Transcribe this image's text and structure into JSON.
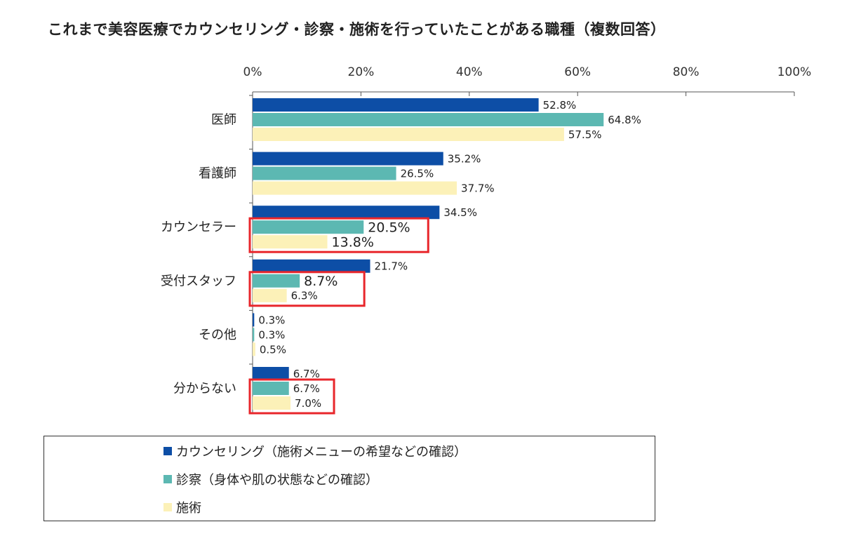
{
  "chart_data": {
    "type": "bar",
    "orientation": "horizontal",
    "title": "これまで美容医療でカウンセリング・診察・施術を行っていたことがある職種（複数回答）",
    "categories": [
      "医師",
      "看護師",
      "カウンセラー",
      "受付スタッフ",
      "その他",
      "分からない"
    ],
    "series": [
      {
        "name": "カウンセリング（施術メニューの希望などの確認）",
        "color": "#0d4ea6",
        "values": [
          52.8,
          35.2,
          34.5,
          21.7,
          0.3,
          6.7
        ],
        "labels": [
          "52.8%",
          "35.2%",
          "34.5%",
          "21.7%",
          "0.3%",
          "6.7%"
        ]
      },
      {
        "name": "診察（身体や肌の状態などの確認）",
        "color": "#5cb8b2",
        "values": [
          64.8,
          26.5,
          20.5,
          8.7,
          0.3,
          6.7
        ],
        "labels": [
          "64.8%",
          "26.5%",
          "20.5%",
          "8.7%",
          "0.3%",
          "6.7%"
        ]
      },
      {
        "name": "施術",
        "color": "#fcf1b8",
        "values": [
          57.5,
          37.7,
          13.8,
          6.3,
          0.5,
          7.0
        ],
        "labels": [
          "57.5%",
          "37.7%",
          "13.8%",
          "6.3%",
          "0.5%",
          "7.0%"
        ]
      }
    ],
    "xlim": [
      0,
      100
    ],
    "xticks": [
      "0%",
      "20%",
      "40%",
      "60%",
      "80%",
      "100%"
    ],
    "xaxis_position": "top",
    "grid": false,
    "legend_position": "bottom",
    "highlighted_categories": [
      "カウンセラー",
      "受付スタッフ",
      "分からない"
    ],
    "highlight_color": "#e8262b"
  }
}
